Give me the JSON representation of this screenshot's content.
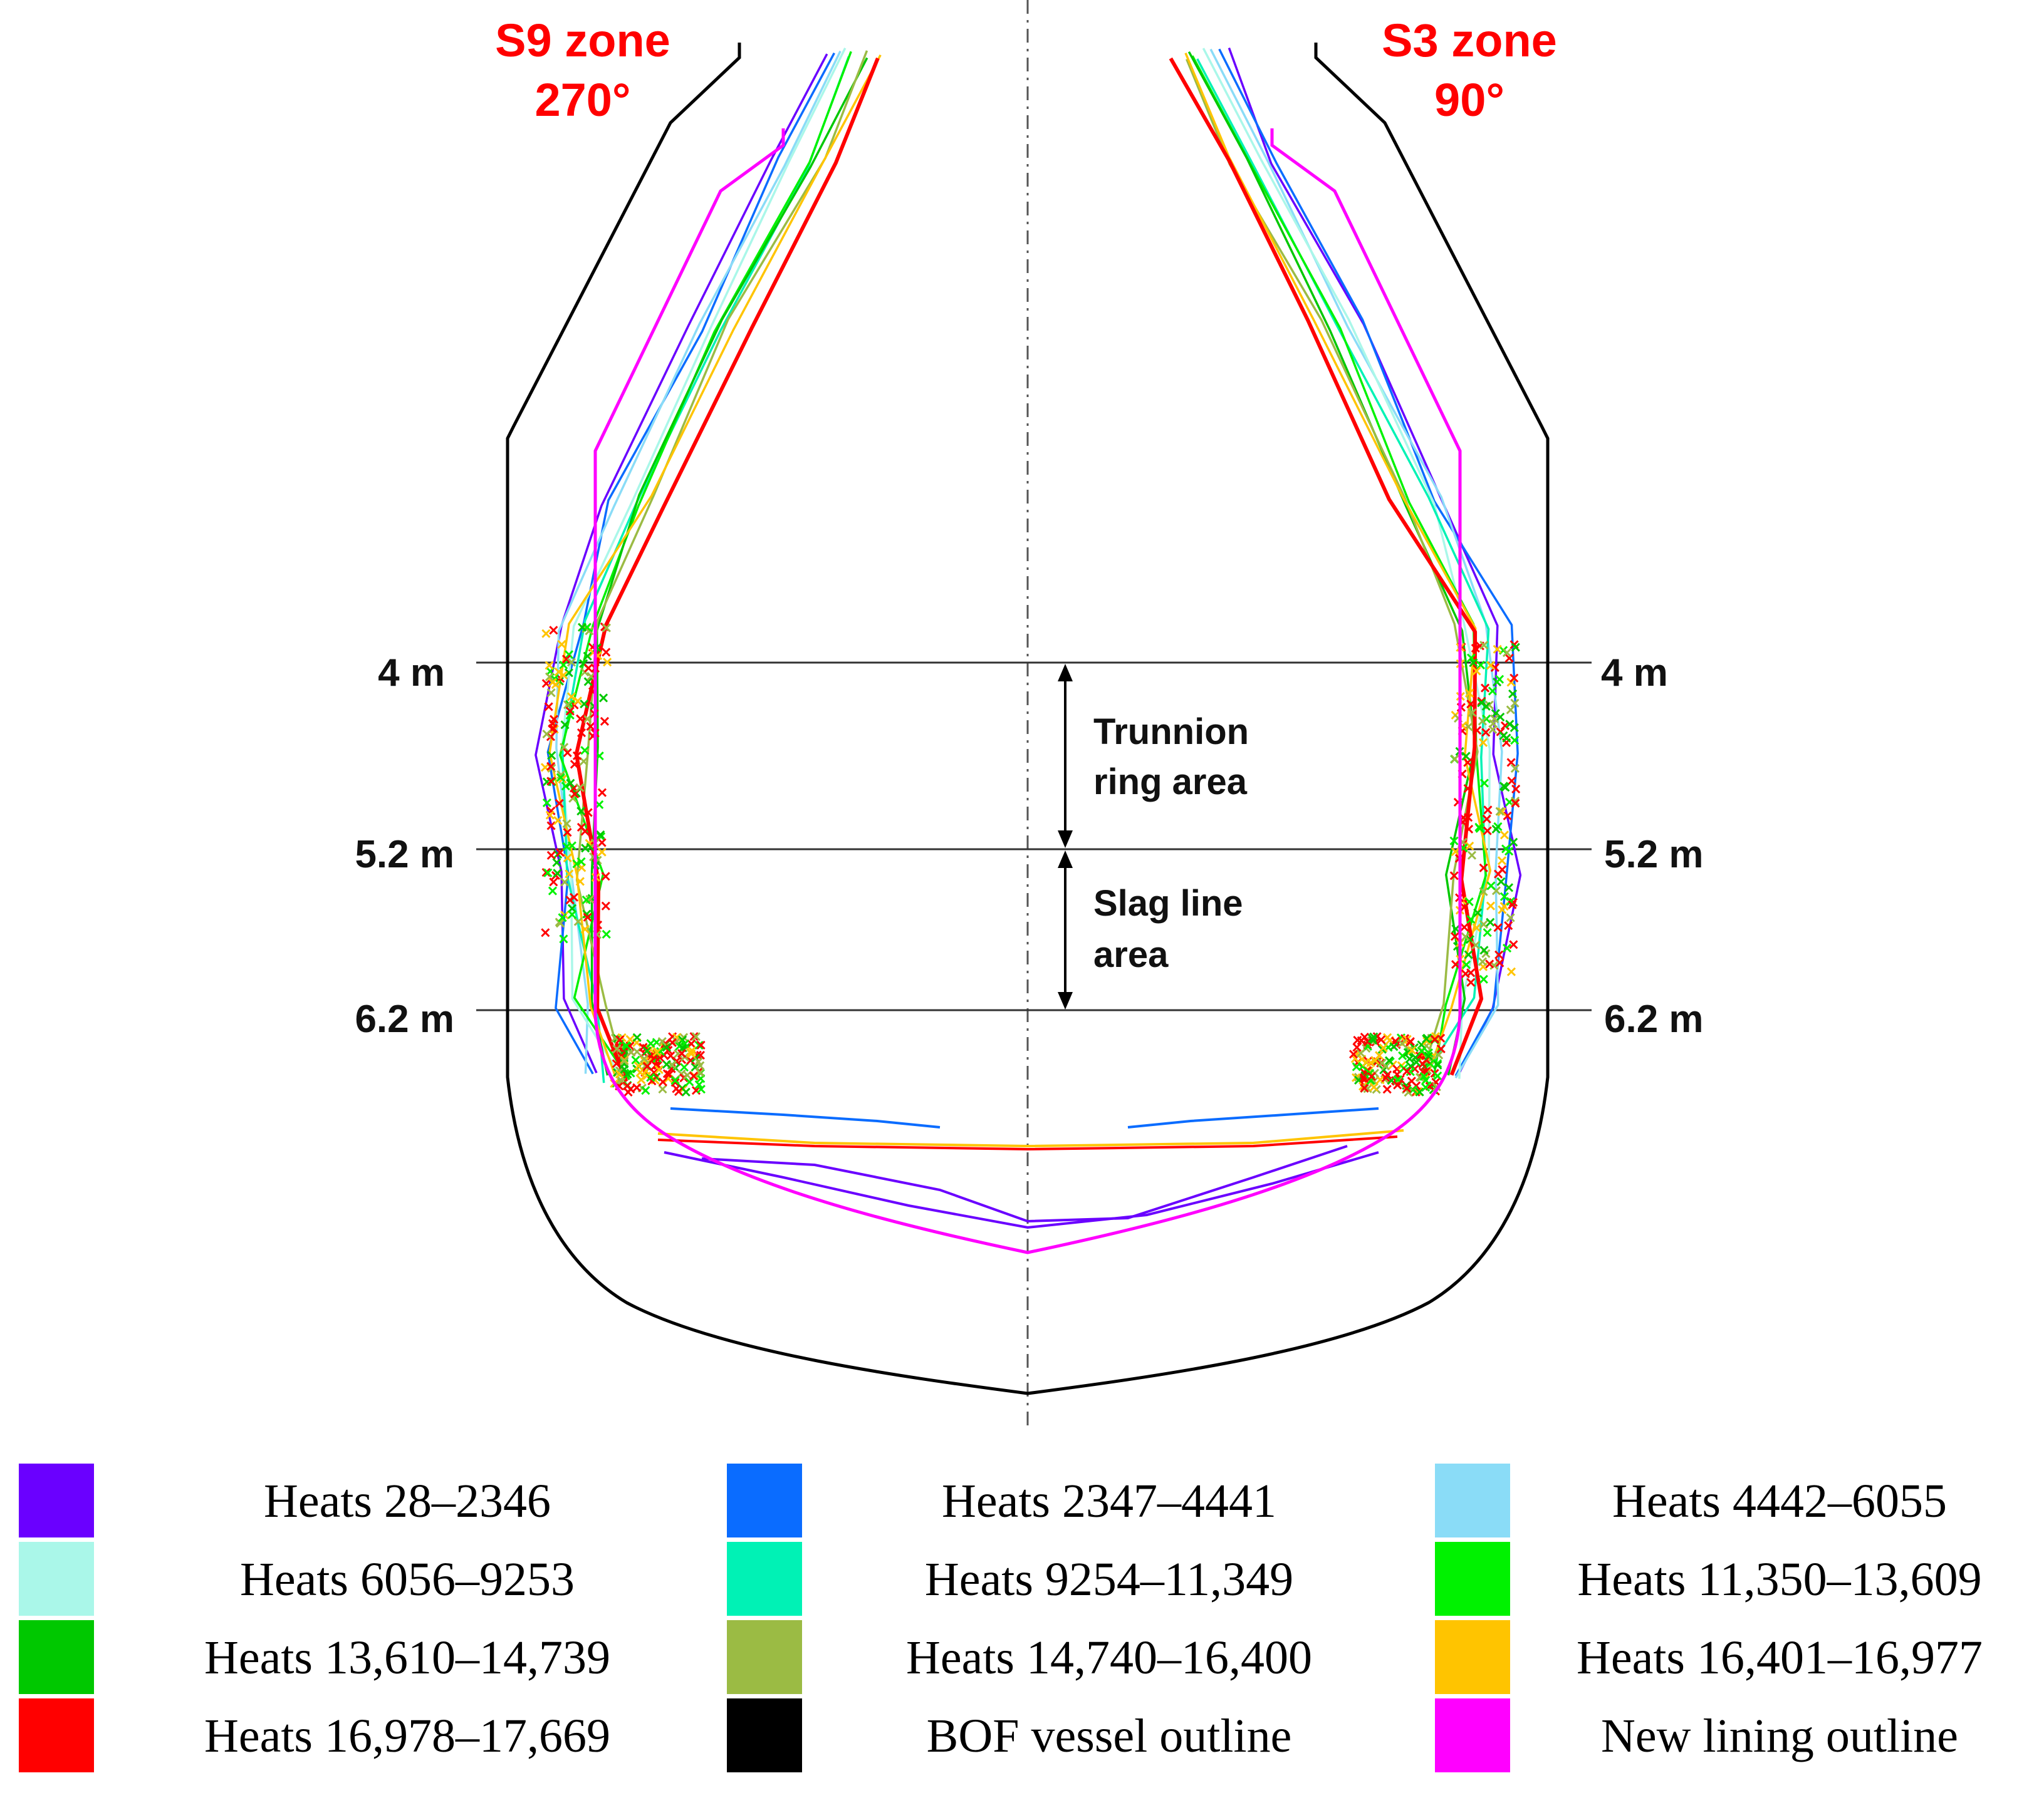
{
  "zones": {
    "left": {
      "name": "S9 zone",
      "angle": "270°"
    },
    "right": {
      "name": "S3 zone",
      "angle": "90°"
    }
  },
  "depth_levels": [
    "4 m",
    "5.2 m",
    "6.2 m"
  ],
  "areas": {
    "trunnion": {
      "line1": "Trunnion",
      "line2": "ring area"
    },
    "slag": {
      "line1": "Slag line",
      "line2": "area"
    }
  },
  "colors": {
    "vessel_outline": "#000000",
    "new_lining": "#ff00ff",
    "zone_label": "#ff0000"
  },
  "legend": [
    {
      "label": "Heats 28–2346",
      "color": "#6a00ff"
    },
    {
      "label": "Heats 2347–4441",
      "color": "#0a6cff"
    },
    {
      "label": "Heats 4442–6055",
      "color": "#8adcf7"
    },
    {
      "label": "Heats 6056–9253",
      "color": "#aaf7e9"
    },
    {
      "label": "Heats 9254–11,349",
      "color": "#00f2b5"
    },
    {
      "label": "Heats 11,350–13,609",
      "color": "#00f200"
    },
    {
      "label": "Heats 13,610–14,739",
      "color": "#00c800"
    },
    {
      "label": "Heats 14,740–16,400",
      "color": "#9bbb44"
    },
    {
      "label": "Heats 16,401–16,977",
      "color": "#ffc400"
    },
    {
      "label": "Heats 16,978–17,669",
      "color": "#ff0000"
    },
    {
      "label": "BOF vessel outline",
      "color": "#000000"
    },
    {
      "label": "New lining outline",
      "color": "#ff00ff"
    }
  ]
}
